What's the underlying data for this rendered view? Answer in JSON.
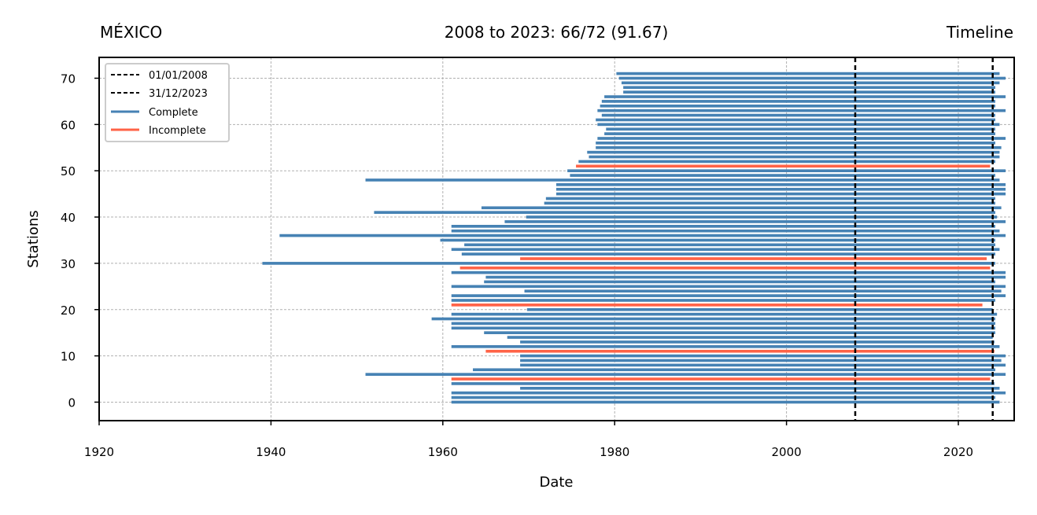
{
  "chart_data": {
    "type": "timeline",
    "title_left": "MÉXICO",
    "title_center": "2008 to 2023: 66/72 (91.67)",
    "title_right": "Timeline",
    "xlabel": "Date",
    "ylabel": "Stations",
    "xlim": [
      1920,
      2026.5
    ],
    "ylim": [
      -4,
      74.5
    ],
    "xticks": [
      1920,
      1940,
      1960,
      1980,
      2000,
      2020
    ],
    "yticks": [
      0,
      10,
      20,
      30,
      40,
      50,
      60,
      70
    ],
    "grid": true,
    "legend_position": "top-left",
    "legend": [
      {
        "label": "01/01/2008",
        "style": "dashed",
        "color": "#000000"
      },
      {
        "label": "31/12/2023",
        "style": "dashed",
        "color": "#000000"
      },
      {
        "label": "Complete",
        "style": "solid",
        "color": "#4682b4"
      },
      {
        "label": "Incomplete",
        "style": "solid",
        "color": "#ff6347"
      }
    ],
    "colors": {
      "complete": "#4682b4",
      "incomplete": "#ff6347",
      "reference": "#000000"
    },
    "reference_lines": [
      2008.0,
      2024.0
    ],
    "stations": [
      {
        "y": 0,
        "start": 1961.0,
        "end": 2024.8,
        "status": "complete"
      },
      {
        "y": 1,
        "start": 1961.0,
        "end": 2024.3,
        "status": "complete"
      },
      {
        "y": 2,
        "start": 1961.0,
        "end": 2025.5,
        "status": "complete"
      },
      {
        "y": 3,
        "start": 1969.0,
        "end": 2024.8,
        "status": "complete"
      },
      {
        "y": 4,
        "start": 1961.0,
        "end": 2024.2,
        "status": "complete"
      },
      {
        "y": 5,
        "start": 1961.0,
        "end": 2023.7,
        "status": "incomplete"
      },
      {
        "y": 6,
        "start": 1951.0,
        "end": 2025.5,
        "status": "complete"
      },
      {
        "y": 7,
        "start": 1963.5,
        "end": 2024.3,
        "status": "complete"
      },
      {
        "y": 8,
        "start": 1969.0,
        "end": 2025.5,
        "status": "complete"
      },
      {
        "y": 9,
        "start": 1969.0,
        "end": 2025.0,
        "status": "complete"
      },
      {
        "y": 10,
        "start": 1969.0,
        "end": 2025.5,
        "status": "complete"
      },
      {
        "y": 11,
        "start": 1965.0,
        "end": 2024.2,
        "status": "incomplete"
      },
      {
        "y": 12,
        "start": 1961.0,
        "end": 2024.8,
        "status": "complete"
      },
      {
        "y": 13,
        "start": 1969.0,
        "end": 2024.2,
        "status": "complete"
      },
      {
        "y": 14,
        "start": 1967.5,
        "end": 2024.0,
        "status": "complete"
      },
      {
        "y": 15,
        "start": 1964.8,
        "end": 2024.3,
        "status": "complete"
      },
      {
        "y": 16,
        "start": 1961.0,
        "end": 2024.3,
        "status": "complete"
      },
      {
        "y": 17,
        "start": 1961.0,
        "end": 2024.3,
        "status": "complete"
      },
      {
        "y": 18,
        "start": 1958.7,
        "end": 2024.3,
        "status": "complete"
      },
      {
        "y": 19,
        "start": 1961.0,
        "end": 2024.5,
        "status": "complete"
      },
      {
        "y": 20,
        "start": 1969.8,
        "end": 2024.0,
        "status": "complete"
      },
      {
        "y": 21,
        "start": 1961.0,
        "end": 2022.8,
        "status": "incomplete"
      },
      {
        "y": 22,
        "start": 1961.0,
        "end": 2024.3,
        "status": "complete"
      },
      {
        "y": 23,
        "start": 1961.0,
        "end": 2025.5,
        "status": "complete"
      },
      {
        "y": 24,
        "start": 1969.5,
        "end": 2025.0,
        "status": "complete"
      },
      {
        "y": 25,
        "start": 1961.0,
        "end": 2025.5,
        "status": "complete"
      },
      {
        "y": 26,
        "start": 1964.8,
        "end": 2024.3,
        "status": "complete"
      },
      {
        "y": 27,
        "start": 1965.0,
        "end": 2025.5,
        "status": "complete"
      },
      {
        "y": 28,
        "start": 1961.0,
        "end": 2025.5,
        "status": "complete"
      },
      {
        "y": 29,
        "start": 1962.0,
        "end": 2023.7,
        "status": "incomplete"
      },
      {
        "y": 30,
        "start": 1939.0,
        "end": 2024.3,
        "status": "complete"
      },
      {
        "y": 31,
        "start": 1969.0,
        "end": 2023.3,
        "status": "incomplete"
      },
      {
        "y": 32,
        "start": 1962.2,
        "end": 2024.3,
        "status": "complete"
      },
      {
        "y": 33,
        "start": 1961.0,
        "end": 2024.8,
        "status": "complete"
      },
      {
        "y": 34,
        "start": 1962.5,
        "end": 2024.3,
        "status": "complete"
      },
      {
        "y": 35,
        "start": 1959.7,
        "end": 2024.3,
        "status": "complete"
      },
      {
        "y": 36,
        "start": 1941.0,
        "end": 2025.5,
        "status": "complete"
      },
      {
        "y": 37,
        "start": 1961.0,
        "end": 2024.8,
        "status": "complete"
      },
      {
        "y": 38,
        "start": 1961.0,
        "end": 2024.3,
        "status": "complete"
      },
      {
        "y": 39,
        "start": 1967.2,
        "end": 2025.5,
        "status": "complete"
      },
      {
        "y": 40,
        "start": 1969.7,
        "end": 2024.5,
        "status": "complete"
      },
      {
        "y": 41,
        "start": 1952.0,
        "end": 2024.3,
        "status": "complete"
      },
      {
        "y": 42,
        "start": 1964.5,
        "end": 2025.0,
        "status": "complete"
      },
      {
        "y": 43,
        "start": 1971.8,
        "end": 2024.3,
        "status": "complete"
      },
      {
        "y": 44,
        "start": 1972.0,
        "end": 2024.3,
        "status": "complete"
      },
      {
        "y": 45,
        "start": 1973.2,
        "end": 2025.5,
        "status": "complete"
      },
      {
        "y": 46,
        "start": 1973.2,
        "end": 2025.5,
        "status": "complete"
      },
      {
        "y": 47,
        "start": 1973.2,
        "end": 2025.5,
        "status": "complete"
      },
      {
        "y": 48,
        "start": 1951.0,
        "end": 2024.8,
        "status": "complete"
      },
      {
        "y": 49,
        "start": 1974.8,
        "end": 2024.3,
        "status": "complete"
      },
      {
        "y": 50,
        "start": 1974.5,
        "end": 2025.5,
        "status": "complete"
      },
      {
        "y": 51,
        "start": 1975.5,
        "end": 2023.7,
        "status": "incomplete"
      },
      {
        "y": 52,
        "start": 1975.8,
        "end": 2024.3,
        "status": "complete"
      },
      {
        "y": 53,
        "start": 1977.0,
        "end": 2024.8,
        "status": "complete"
      },
      {
        "y": 54,
        "start": 1976.8,
        "end": 2024.8,
        "status": "complete"
      },
      {
        "y": 55,
        "start": 1977.8,
        "end": 2025.0,
        "status": "complete"
      },
      {
        "y": 56,
        "start": 1977.8,
        "end": 2024.3,
        "status": "complete"
      },
      {
        "y": 57,
        "start": 1978.0,
        "end": 2025.5,
        "status": "complete"
      },
      {
        "y": 58,
        "start": 1978.8,
        "end": 2024.3,
        "status": "complete"
      },
      {
        "y": 59,
        "start": 1979.0,
        "end": 2024.3,
        "status": "complete"
      },
      {
        "y": 60,
        "start": 1978.0,
        "end": 2024.8,
        "status": "complete"
      },
      {
        "y": 61,
        "start": 1977.8,
        "end": 2024.3,
        "status": "complete"
      },
      {
        "y": 62,
        "start": 1978.5,
        "end": 2024.3,
        "status": "complete"
      },
      {
        "y": 63,
        "start": 1978.0,
        "end": 2025.5,
        "status": "complete"
      },
      {
        "y": 64,
        "start": 1978.3,
        "end": 2024.3,
        "status": "complete"
      },
      {
        "y": 65,
        "start": 1978.5,
        "end": 2024.3,
        "status": "complete"
      },
      {
        "y": 66,
        "start": 1978.8,
        "end": 2025.5,
        "status": "complete"
      },
      {
        "y": 67,
        "start": 1981.0,
        "end": 2024.3,
        "status": "complete"
      },
      {
        "y": 68,
        "start": 1981.0,
        "end": 2024.3,
        "status": "complete"
      },
      {
        "y": 69,
        "start": 1980.8,
        "end": 2024.8,
        "status": "complete"
      },
      {
        "y": 70,
        "start": 1980.5,
        "end": 2025.5,
        "status": "complete"
      },
      {
        "y": 71,
        "start": 1980.2,
        "end": 2024.8,
        "status": "complete"
      }
    ]
  }
}
